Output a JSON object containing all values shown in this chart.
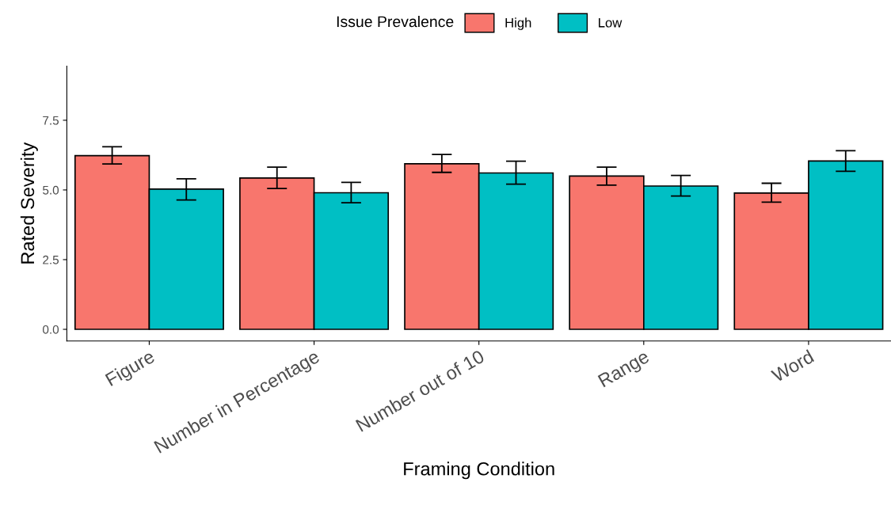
{
  "chart_data": {
    "type": "bar",
    "xlabel": "Framing Condition",
    "ylabel": "Rated Severity",
    "legend_title": "Issue Prevalence",
    "categories": [
      "Figure",
      "Number in Percentage",
      "Number out of 10",
      "Range",
      "Word"
    ],
    "series": [
      {
        "name": "High",
        "color": "#f8766d",
        "values": [
          6.23,
          5.43,
          5.94,
          5.5,
          4.89
        ],
        "errors": [
          [
            5.93,
            6.55
          ],
          [
            5.05,
            5.82
          ],
          [
            5.63,
            6.27
          ],
          [
            5.17,
            5.82
          ],
          [
            4.56,
            5.24
          ]
        ]
      },
      {
        "name": "Low",
        "color": "#00bfc4",
        "values": [
          5.03,
          4.9,
          5.61,
          5.14,
          6.04
        ],
        "errors": [
          [
            4.64,
            5.4
          ],
          [
            4.54,
            5.27
          ],
          [
            5.21,
            6.03
          ],
          [
            4.78,
            5.52
          ],
          [
            5.67,
            6.41
          ]
        ]
      }
    ],
    "ylim": [
      -0.42,
      9.44
    ],
    "yticks": [
      {
        "value": 0,
        "label": "0.0"
      },
      2.5,
      {
        "value": 5,
        "label": "5.0"
      },
      7.5
    ],
    "legend": "top"
  }
}
